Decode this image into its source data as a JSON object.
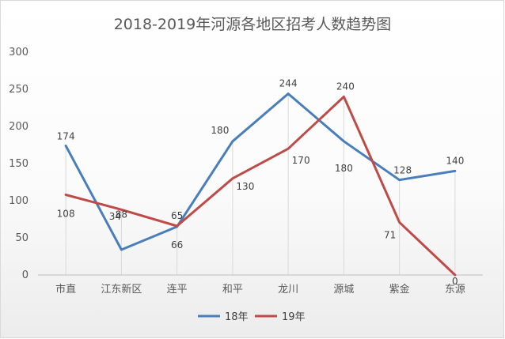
{
  "chart_data": {
    "type": "line",
    "title": "2018-2019年河源各地区招考人数趋势图",
    "categories": [
      "市直",
      "江东新区",
      "连平",
      "和平",
      "龙川",
      "源城",
      "紫金",
      "东源"
    ],
    "series": [
      {
        "name": "18年",
        "color": "#4a7ebb",
        "values": [
          174,
          34,
          65,
          180,
          244,
          180,
          128,
          140
        ]
      },
      {
        "name": "19年",
        "color": "#be4b48",
        "values": [
          108,
          88,
          66,
          130,
          170,
          240,
          71,
          0
        ]
      }
    ],
    "ylim": [
      0,
      300
    ],
    "yticks": [
      0,
      50,
      100,
      150,
      200,
      250,
      300
    ],
    "grid": false,
    "legend": "bottom"
  }
}
